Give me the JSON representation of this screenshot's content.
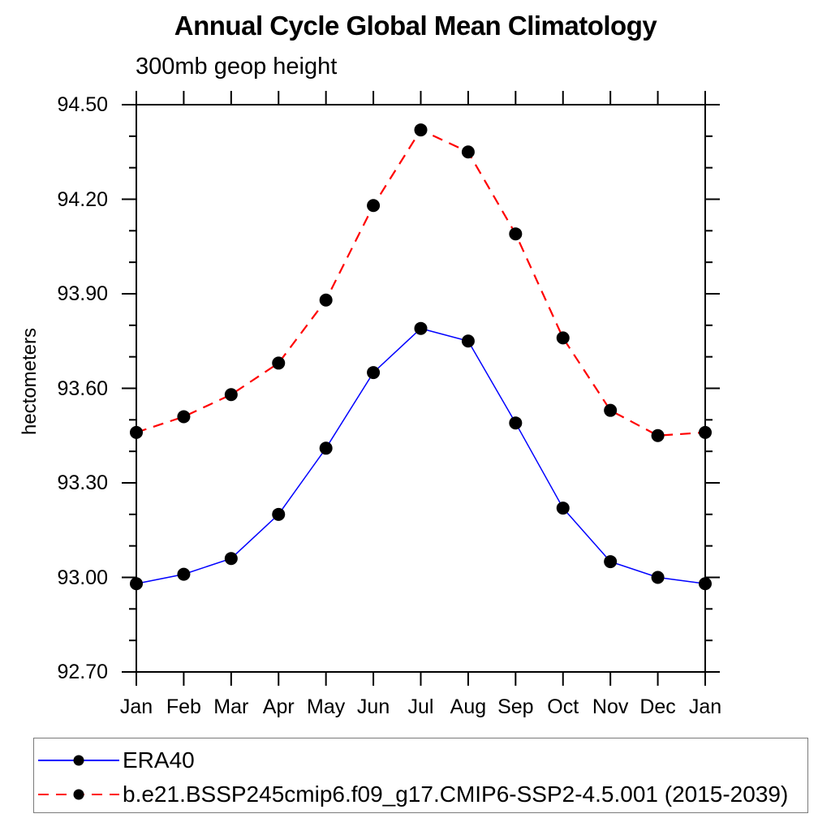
{
  "chart_data": {
    "type": "line",
    "title": "Annual Cycle Global Mean Climatology",
    "subtitle": "300mb geop height",
    "ylabel": "hectometers",
    "xlabel": "",
    "categories": [
      "Jan",
      "Feb",
      "Mar",
      "Apr",
      "May",
      "Jun",
      "Jul",
      "Aug",
      "Sep",
      "Oct",
      "Nov",
      "Dec",
      "Jan"
    ],
    "ylim": [
      92.7,
      94.5
    ],
    "ytick_step": 0.3,
    "yminor_step": 0.1,
    "ytick_labels": [
      "92.70",
      "93.00",
      "93.30",
      "93.60",
      "93.90",
      "94.20",
      "94.50"
    ],
    "grid": false,
    "legend_position": "bottom-left boxed",
    "axis_color": "#000000",
    "marker_color": "#000000",
    "series": [
      {
        "name": "ERA40",
        "color": "#0000ff",
        "line_style": "solid",
        "marker": "filled-circle",
        "values": [
          92.98,
          93.01,
          93.06,
          93.2,
          93.41,
          93.65,
          93.79,
          93.75,
          93.49,
          93.22,
          93.05,
          93.0,
          92.98
        ]
      },
      {
        "name": "b.e21.BSSP245cmip6.f09_g17.CMIP6-SSP2-4.5.001 (2015-2039)",
        "color": "#ff0000",
        "line_style": "dashed",
        "marker": "filled-circle",
        "values": [
          93.46,
          93.51,
          93.58,
          93.68,
          93.88,
          94.18,
          94.42,
          94.35,
          94.09,
          93.76,
          93.53,
          93.45,
          93.46
        ]
      }
    ]
  }
}
